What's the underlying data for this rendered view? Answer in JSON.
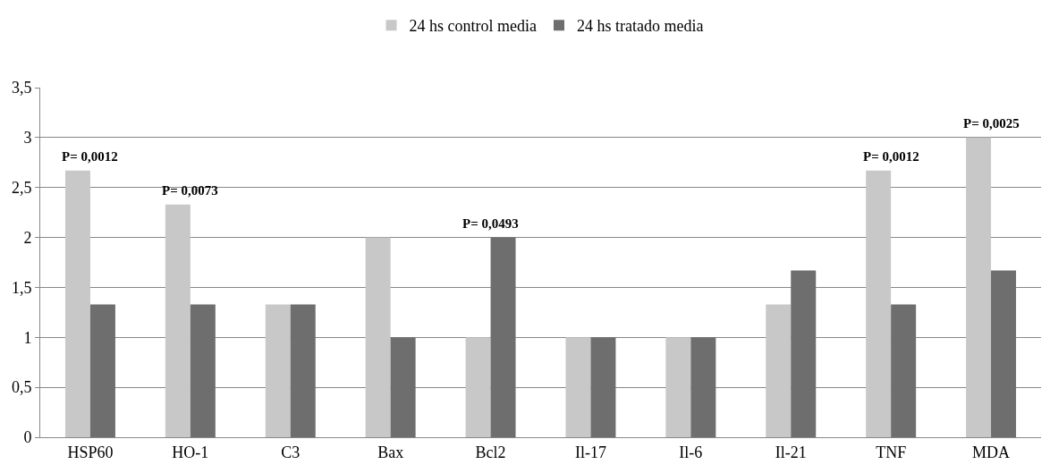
{
  "chart_data": {
    "type": "bar",
    "categories": [
      "HSP60",
      "HO-1",
      "C3",
      "Bax",
      "Bcl2",
      "Il-17",
      "Il-6",
      "Il-21",
      "TNF",
      "MDA"
    ],
    "series": [
      {
        "name": "24 hs control media",
        "color": "#c8c8c8",
        "values": [
          2.67,
          2.33,
          1.33,
          2,
          1,
          1,
          1,
          1.33,
          2.67,
          3
        ]
      },
      {
        "name": "24 hs tratado media",
        "color": "#6e6e6e",
        "values": [
          1.33,
          1.33,
          1.33,
          1,
          2,
          1,
          1,
          1.67,
          1.33,
          1.67
        ]
      }
    ],
    "ylim": [
      0,
      3.5
    ],
    "yticks": [
      0,
      {
        "value": 0.5,
        "label": "0,5"
      },
      1,
      {
        "value": 1.5,
        "label": "1,5"
      },
      2,
      {
        "value": 2.5,
        "label": "2,5"
      },
      3,
      {
        "value": 3.5,
        "label": "3,5"
      }
    ],
    "grid": "y",
    "legend": "top",
    "annotations": [
      {
        "text": "P= 0,0012",
        "x": "HSP60",
        "y": 2.67
      },
      {
        "text": "P= 0,0073",
        "x": "HO-1",
        "y": 2.33
      },
      {
        "text": "P= 0,0493",
        "x": "Bcl2",
        "y": 2
      },
      {
        "text": "P= 0,0012",
        "x": "TNF",
        "y": 2.67
      },
      {
        "text": "P= 0,0025",
        "x": "MDA",
        "y": 3
      }
    ]
  }
}
